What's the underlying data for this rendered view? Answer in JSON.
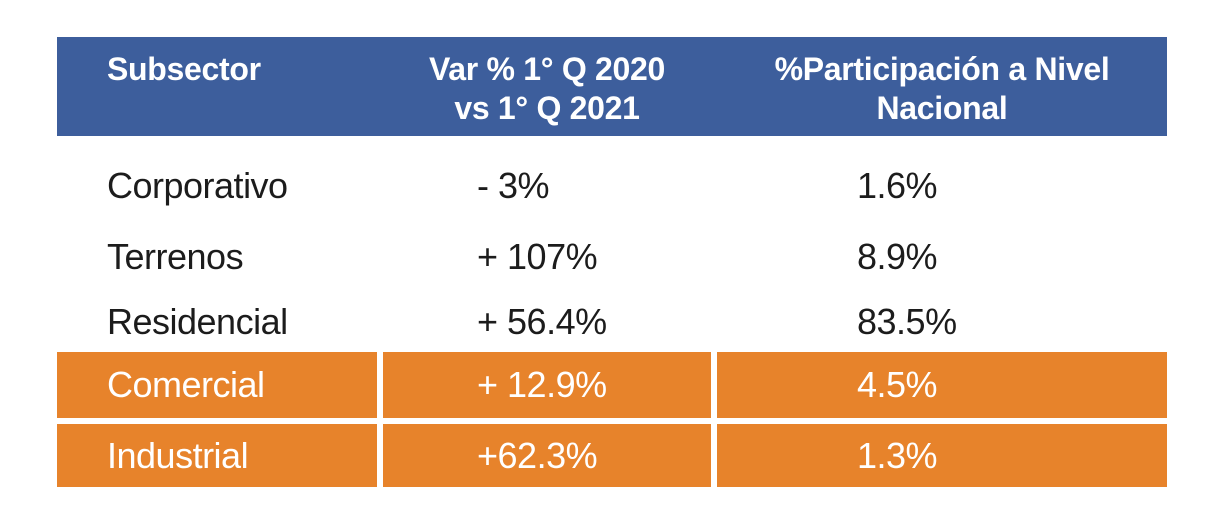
{
  "colors": {
    "header_bg": "#3D5E9C",
    "header_text": "#ffffff",
    "highlight_bg": "#E7832B",
    "highlight_text": "#ffffff",
    "body_text": "#1c1c1c",
    "page_bg": "#ffffff"
  },
  "table": {
    "header": {
      "col1": "Subsector",
      "col2_line1": "Var % 1° Q 2020",
      "col2_line2": "vs 1° Q 2021",
      "col3_line1": "%Participación a Nivel",
      "col3_line2": "Nacional"
    },
    "rows": [
      {
        "subsector": "Corporativo",
        "variation": "- 3%",
        "participation": "1.6%",
        "highlighted": false
      },
      {
        "subsector": "Terrenos",
        "variation": "+ 107%",
        "participation": "8.9%",
        "highlighted": false
      },
      {
        "subsector": "Residencial",
        "variation": "+ 56.4%",
        "participation": "83.5%",
        "highlighted": false
      },
      {
        "subsector": "Comercial",
        "variation": "+ 12.9%",
        "participation": "4.5%",
        "highlighted": true
      },
      {
        "subsector": "Industrial",
        "variation": "+62.3%",
        "participation": "1.3%",
        "highlighted": true
      }
    ]
  },
  "chart_data": {
    "type": "table",
    "columns": [
      "Subsector",
      "Var % 1° Q 2020 vs 1° Q 2021",
      "%Participación a Nivel Nacional"
    ],
    "rows": [
      [
        "Corporativo",
        "- 3%",
        "1.6%"
      ],
      [
        "Terrenos",
        "+ 107%",
        "8.9%"
      ],
      [
        "Residencial",
        "+ 56.4%",
        "83.5%"
      ],
      [
        "Comercial",
        "+ 12.9%",
        "4.5%"
      ],
      [
        "Industrial",
        "+62.3%",
        "1.3%"
      ]
    ],
    "highlighted_rows": [
      "Comercial",
      "Industrial"
    ],
    "header_color": "#3D5E9C",
    "highlight_color": "#E7832B",
    "legend_position": "none",
    "grid": false
  }
}
